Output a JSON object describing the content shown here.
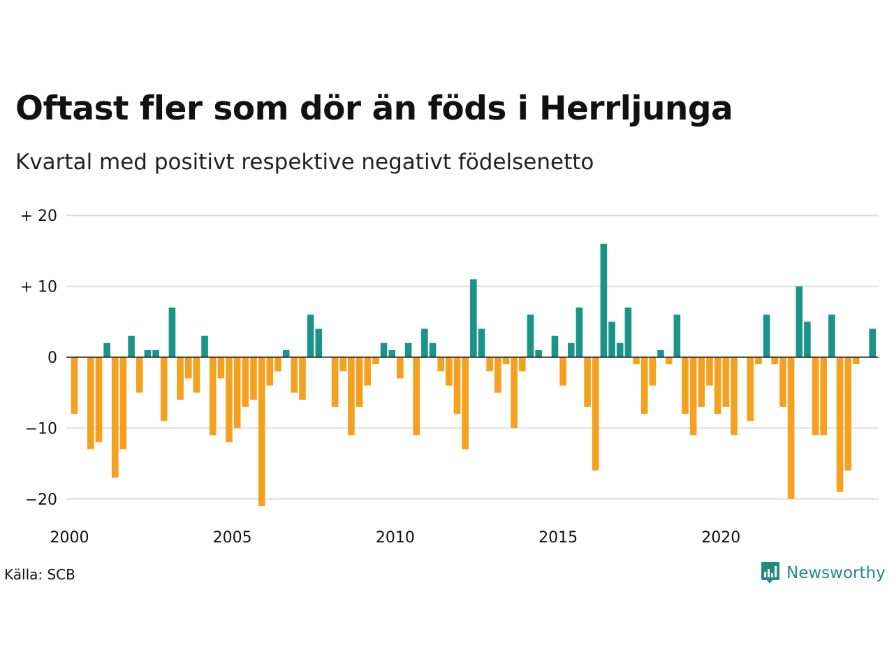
{
  "title": "Oftast fler som dör än föds i Herrljunga",
  "subtitle": "Kvartal med positivt respektive negativt födelsenetto",
  "source": "Källa: SCB",
  "logo": {
    "text": "Newsworthy",
    "icon": "newsworthy-chart-icon"
  },
  "colors": {
    "positive": "#1a9488",
    "negative": "#f5a01e",
    "grid": "#dddddd",
    "zero": "#222222"
  },
  "chart_data": {
    "type": "bar",
    "x_start": "2000 Q1",
    "ylim": [
      -22,
      20
    ],
    "y_ticks": [
      {
        "value": 20,
        "label": "+ 20"
      },
      {
        "value": 10,
        "label": "+ 10"
      },
      {
        "value": 0,
        "label": "0"
      },
      {
        "value": -10,
        "label": "−10"
      },
      {
        "value": -20,
        "label": "−20"
      }
    ],
    "x_ticks": [
      {
        "year": 2000,
        "label": "2000"
      },
      {
        "year": 2005,
        "label": "2005"
      },
      {
        "year": 2010,
        "label": "2010"
      },
      {
        "year": 2015,
        "label": "2015"
      },
      {
        "year": 2020,
        "label": "2020"
      }
    ],
    "grid": true,
    "values": [
      -8,
      0,
      -13,
      -12,
      2,
      -17,
      -13,
      3,
      -5,
      1,
      1,
      -9,
      7,
      -6,
      -3,
      -5,
      3,
      -11,
      -3,
      -12,
      -10,
      -7,
      -6,
      -21,
      -4,
      -2,
      1,
      -5,
      -6,
      6,
      4,
      0,
      -7,
      -2,
      -11,
      -7,
      -4,
      -1,
      2,
      1,
      -3,
      2,
      -11,
      4,
      2,
      -2,
      -4,
      -8,
      -13,
      11,
      4,
      -2,
      -5,
      -1,
      -10,
      -2,
      6,
      1,
      0,
      3,
      -4,
      2,
      7,
      -7,
      -16,
      16,
      5,
      2,
      7,
      -1,
      -8,
      -4,
      1,
      -1,
      6,
      -8,
      -11,
      -7,
      -4,
      -8,
      -7,
      -11,
      0,
      -9,
      -1,
      6,
      -1,
      -7,
      -20,
      10,
      5,
      -11,
      -11,
      6,
      -19,
      -16,
      -1,
      0,
      4
    ]
  }
}
